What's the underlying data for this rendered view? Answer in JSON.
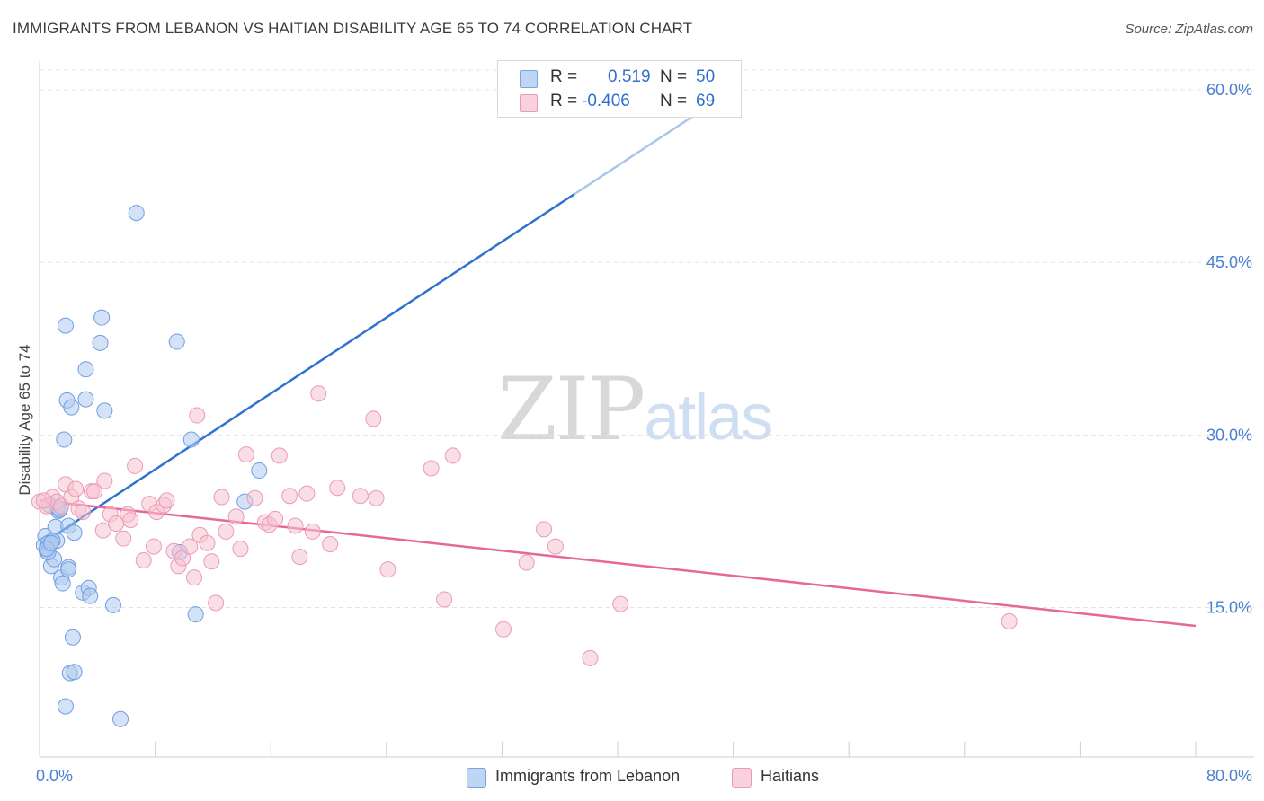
{
  "header": {
    "title": "IMMIGRANTS FROM LEBANON VS HAITIAN DISABILITY AGE 65 TO 74 CORRELATION CHART",
    "source": "Source: ZipAtlas.com"
  },
  "watermark": {
    "zip": "ZIP",
    "atlas": "atlas"
  },
  "stats": {
    "rows": [
      {
        "r_label": "R =",
        "r_value": "0.519",
        "n_label": "N =",
        "n_value": "50",
        "color": "#aecbef"
      },
      {
        "r_label": "R =",
        "r_value": "-0.406",
        "n_label": "N =",
        "n_value": "69",
        "color": "#f6b8cb"
      }
    ]
  },
  "legend": {
    "items": [
      {
        "label": "Immigrants from Lebanon",
        "color": "#aecbef",
        "border": "#7aa5e0"
      },
      {
        "label": "Haitians",
        "color": "#f6c2d2",
        "border": "#ec9ab4"
      }
    ]
  },
  "chart_data": {
    "type": "scatter",
    "title": "IMMIGRANTS FROM LEBANON VS HAITIAN DISABILITY AGE 65 TO 74 CORRELATION CHART",
    "xlabel": "",
    "ylabel": "Disability Age 65 to 74",
    "xlim": [
      0,
      80
    ],
    "ylim": [
      2.0,
      62.5
    ],
    "x_tick_labels": [
      "0.0%",
      "80.0%"
    ],
    "y_ticks": [
      15,
      30,
      45,
      60
    ],
    "y_tick_labels": [
      "15.0%",
      "30.0%",
      "45.0%",
      "60.0%"
    ],
    "grid": "horizontal dashed",
    "legend_position": "bottom",
    "colors": {
      "lebanon": "#2f72d0",
      "haitians": "#e8679a",
      "tick": "#4a7fd1"
    },
    "series": [
      {
        "name": "Immigrants from Lebanon",
        "color": "#aecbef",
        "stroke": "#6f9ee0",
        "points": [
          [
            0.3,
            20.4
          ],
          [
            0.4,
            21.2
          ],
          [
            0.5,
            19.9
          ],
          [
            0.6,
            20.6
          ],
          [
            0.7,
            23.9
          ],
          [
            0.8,
            18.6
          ],
          [
            0.9,
            20.8
          ],
          [
            1.0,
            19.2
          ],
          [
            1.1,
            22.0
          ],
          [
            1.2,
            20.8
          ],
          [
            1.3,
            23.4
          ],
          [
            1.4,
            23.6
          ],
          [
            1.5,
            17.6
          ],
          [
            1.6,
            17.1
          ],
          [
            1.7,
            29.6
          ],
          [
            1.8,
            6.4
          ],
          [
            1.8,
            39.5
          ],
          [
            1.9,
            33.0
          ],
          [
            2.0,
            22.1
          ],
          [
            2.0,
            18.5
          ],
          [
            2.1,
            9.3
          ],
          [
            2.2,
            32.4
          ],
          [
            2.3,
            12.4
          ],
          [
            2.4,
            9.4
          ],
          [
            2.4,
            21.5
          ],
          [
            3.0,
            16.3
          ],
          [
            3.2,
            35.7
          ],
          [
            3.2,
            33.1
          ],
          [
            3.4,
            16.7
          ],
          [
            3.5,
            16.0
          ],
          [
            4.2,
            38.0
          ],
          [
            4.3,
            40.2
          ],
          [
            4.5,
            32.1
          ],
          [
            5.1,
            15.2
          ],
          [
            5.6,
            5.3
          ],
          [
            6.7,
            49.3
          ],
          [
            9.5,
            38.1
          ],
          [
            9.7,
            19.8
          ],
          [
            10.5,
            29.6
          ],
          [
            10.8,
            14.4
          ],
          [
            14.2,
            24.2
          ],
          [
            15.2,
            26.9
          ],
          [
            42.3,
            60.0
          ],
          [
            0.6,
            19.8
          ],
          [
            1.2,
            23.7
          ],
          [
            0.9,
            20.8
          ],
          [
            0.5,
            20.1
          ],
          [
            1.4,
            23.5
          ],
          [
            2.0,
            18.3
          ],
          [
            0.8,
            20.6
          ]
        ],
        "trend": [
          [
            0.0,
            20.4
          ],
          [
            48.0,
            60.0
          ]
        ]
      },
      {
        "name": "Haitians",
        "color": "#f6c2d2",
        "stroke": "#ec9ab4",
        "points": [
          [
            0.0,
            24.2
          ],
          [
            0.5,
            23.8
          ],
          [
            0.9,
            24.6
          ],
          [
            1.2,
            24.2
          ],
          [
            1.5,
            23.8
          ],
          [
            1.8,
            25.7
          ],
          [
            2.2,
            24.6
          ],
          [
            2.5,
            25.3
          ],
          [
            2.7,
            23.6
          ],
          [
            3.0,
            23.3
          ],
          [
            3.6,
            25.1
          ],
          [
            3.8,
            25.1
          ],
          [
            4.4,
            21.7
          ],
          [
            4.5,
            26.0
          ],
          [
            4.9,
            23.1
          ],
          [
            5.3,
            22.3
          ],
          [
            5.8,
            21.0
          ],
          [
            6.1,
            23.1
          ],
          [
            6.3,
            22.6
          ],
          [
            6.6,
            27.3
          ],
          [
            7.2,
            19.1
          ],
          [
            7.6,
            24.0
          ],
          [
            7.9,
            20.3
          ],
          [
            8.1,
            23.3
          ],
          [
            8.6,
            23.9
          ],
          [
            8.8,
            24.3
          ],
          [
            9.3,
            19.9
          ],
          [
            9.6,
            18.6
          ],
          [
            9.9,
            19.3
          ],
          [
            10.4,
            20.3
          ],
          [
            10.7,
            17.6
          ],
          [
            10.9,
            31.7
          ],
          [
            11.1,
            21.3
          ],
          [
            11.6,
            20.6
          ],
          [
            11.9,
            19.0
          ],
          [
            12.2,
            15.4
          ],
          [
            12.6,
            24.6
          ],
          [
            12.9,
            21.6
          ],
          [
            13.6,
            22.9
          ],
          [
            13.9,
            20.1
          ],
          [
            14.3,
            28.3
          ],
          [
            14.9,
            24.5
          ],
          [
            15.6,
            22.4
          ],
          [
            15.9,
            22.2
          ],
          [
            16.3,
            22.7
          ],
          [
            16.6,
            28.2
          ],
          [
            17.3,
            24.7
          ],
          [
            17.7,
            22.1
          ],
          [
            18.0,
            19.4
          ],
          [
            18.5,
            24.9
          ],
          [
            18.9,
            21.6
          ],
          [
            19.3,
            33.6
          ],
          [
            20.1,
            20.5
          ],
          [
            20.6,
            25.4
          ],
          [
            22.2,
            24.7
          ],
          [
            23.1,
            31.4
          ],
          [
            23.3,
            24.5
          ],
          [
            24.1,
            18.3
          ],
          [
            27.1,
            27.1
          ],
          [
            28.0,
            15.7
          ],
          [
            28.6,
            28.2
          ],
          [
            32.1,
            13.1
          ],
          [
            33.7,
            18.9
          ],
          [
            34.9,
            21.8
          ],
          [
            35.7,
            20.3
          ],
          [
            38.1,
            10.6
          ],
          [
            40.2,
            15.3
          ],
          [
            67.1,
            13.8
          ],
          [
            0.3,
            24.3
          ]
        ],
        "trend": [
          [
            0.0,
            24.3
          ],
          [
            80.0,
            13.4
          ]
        ]
      }
    ]
  }
}
